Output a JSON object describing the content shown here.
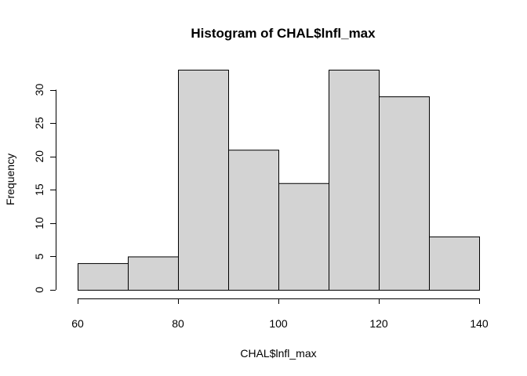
{
  "chart_data": {
    "type": "bar",
    "title": "Histogram of CHAL$lnfl_max",
    "xlabel": "CHAL$lnfl_max",
    "ylabel": "Frequency",
    "bins": [
      {
        "from": 60,
        "to": 70,
        "count": 4
      },
      {
        "from": 70,
        "to": 80,
        "count": 5
      },
      {
        "from": 80,
        "to": 90,
        "count": 33
      },
      {
        "from": 90,
        "to": 100,
        "count": 21
      },
      {
        "from": 100,
        "to": 110,
        "count": 16
      },
      {
        "from": 110,
        "to": 120,
        "count": 33
      },
      {
        "from": 120,
        "to": 130,
        "count": 29
      },
      {
        "from": 130,
        "to": 140,
        "count": 8
      }
    ],
    "xlim": [
      60,
      140
    ],
    "ylim": [
      0,
      33
    ],
    "x_ticks": [
      60,
      80,
      100,
      120,
      140
    ],
    "y_ticks": [
      0,
      5,
      10,
      15,
      20,
      25,
      30
    ],
    "bar_color": "#d3d3d3",
    "grid": false,
    "legend": "none"
  }
}
